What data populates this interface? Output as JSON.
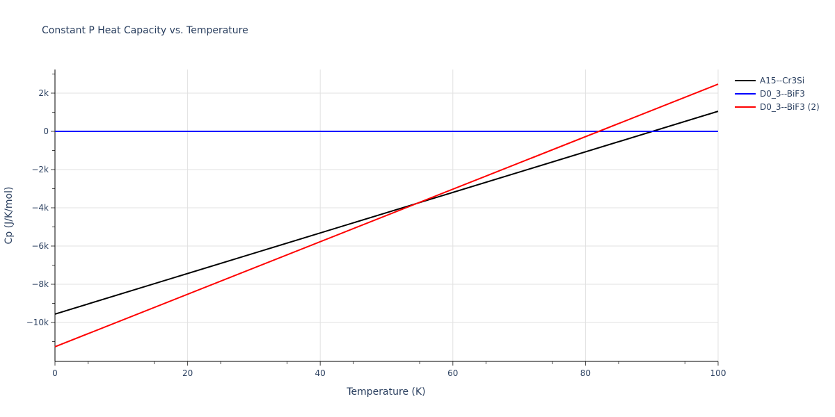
{
  "chart_data": {
    "type": "line",
    "title": "Constant P Heat Capacity vs. Temperature",
    "xlabel": "Temperature (K)",
    "ylabel": "Cp (J/K/mol)",
    "xlim": [
      0,
      100
    ],
    "ylim": [
      -12000,
      3200
    ],
    "x_ticks": [
      0,
      20,
      40,
      60,
      80,
      100
    ],
    "x_tick_labels": [
      "0",
      "20",
      "40",
      "60",
      "80",
      "100"
    ],
    "y_ticks": [
      2000,
      0,
      -2000,
      -4000,
      -6000,
      -8000,
      -10000
    ],
    "y_tick_labels": [
      "2k",
      "0",
      "−2k",
      "−4k",
      "−6k",
      "−8k",
      "−10k"
    ],
    "grid": true,
    "legend_position": "right",
    "series": [
      {
        "name": "A15--Cr3Si",
        "color": "#000000",
        "x": [
          0,
          100
        ],
        "values": [
          -9560,
          1050
        ]
      },
      {
        "name": "D0_3--BiF3",
        "color": "#0000ff",
        "x": [
          0,
          100
        ],
        "values": [
          0,
          0
        ]
      },
      {
        "name": "D0_3--BiF3 (2)",
        "color": "#ff0000",
        "x": [
          0,
          100
        ],
        "values": [
          -11270,
          2470
        ]
      }
    ]
  },
  "legend": {
    "items": [
      {
        "label": "A15--Cr3Si",
        "color": "#000000"
      },
      {
        "label": "D0_3--BiF3",
        "color": "#0000ff"
      },
      {
        "label": "D0_3--BiF3 (2)",
        "color": "#ff0000"
      }
    ]
  }
}
